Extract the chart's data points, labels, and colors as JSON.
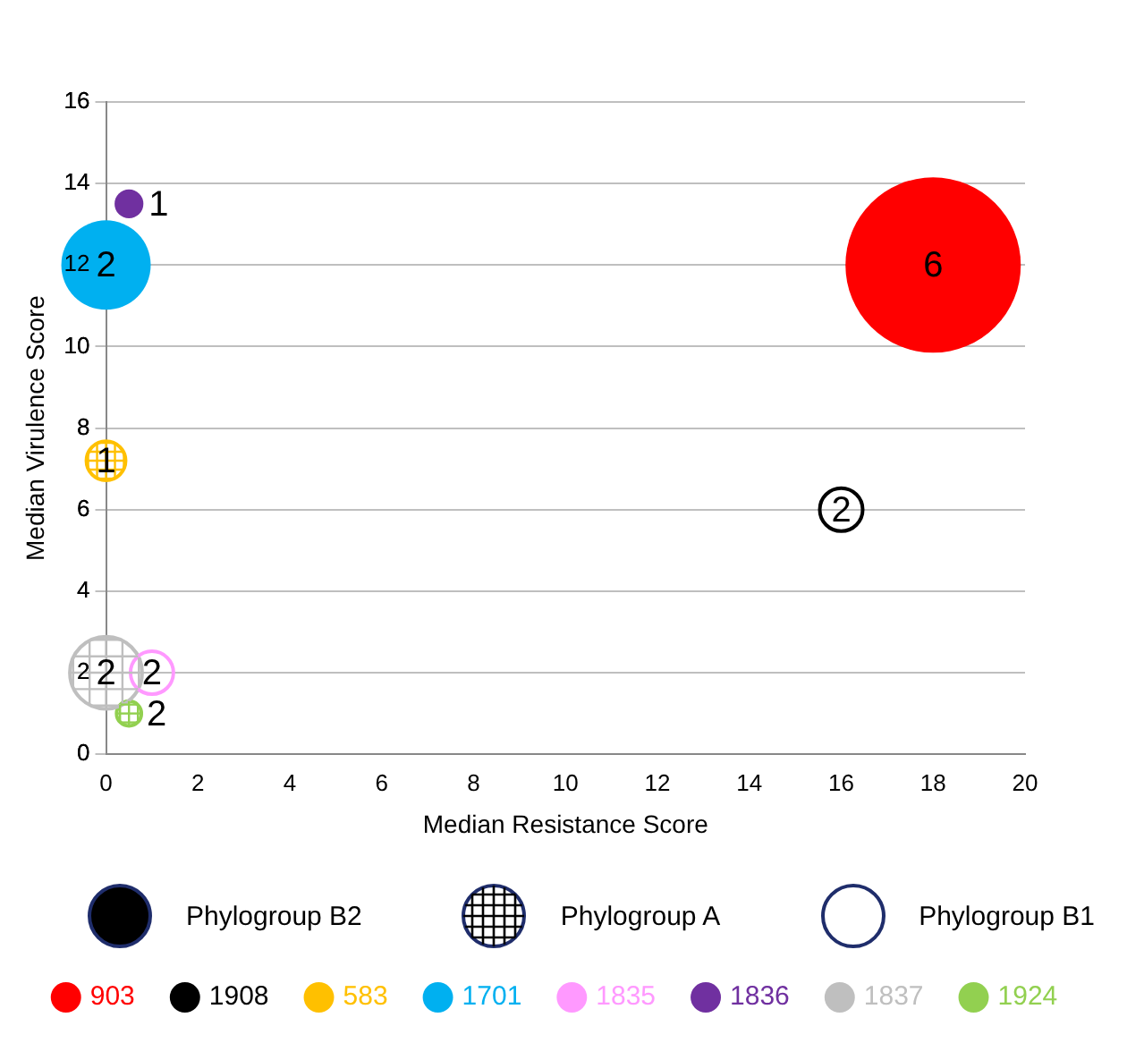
{
  "chart_data": {
    "type": "bubble",
    "xlabel": "Median Resistance Score",
    "ylabel": "Median Virulence Score",
    "xlim": [
      0,
      20
    ],
    "xticks": [
      0,
      2,
      4,
      6,
      8,
      10,
      12,
      14,
      16,
      18,
      20
    ],
    "ylim": [
      0,
      16
    ],
    "yticks": [
      0,
      2,
      4,
      6,
      8,
      10,
      12,
      14,
      16
    ],
    "grid": "y",
    "legend": "bottom",
    "annotations": [
      "Phylogroup B2",
      "Phylogroup A",
      "Phylogroup B1",
      {
        "text": "6",
        "x": 18,
        "y": 12
      },
      {
        "text": "2",
        "x": 16,
        "y": 6
      },
      {
        "text": "1",
        "x": 0,
        "y": 7.2
      },
      {
        "text": "2",
        "x": 0,
        "y": 12
      },
      {
        "text": "2",
        "x": 1,
        "y": 2
      },
      {
        "text": "1",
        "x": 0.5,
        "y": 13.5
      },
      {
        "text": "2",
        "x": 0,
        "y": 2
      },
      {
        "text": "2",
        "x": 0.5,
        "y": 1
      }
    ],
    "series": [
      {
        "name": "903",
        "color": "#ff0000",
        "x": [
          18
        ],
        "values": [
          12
        ],
        "sizes": [
          1
        ]
      },
      {
        "name": "1908",
        "color": "#000000",
        "x": [
          16
        ],
        "values": [
          6
        ],
        "sizes": [
          0.06
        ]
      },
      {
        "name": "583",
        "color": "#ffc000",
        "x": [
          0
        ],
        "values": [
          7.2
        ],
        "sizes": [
          0.05
        ]
      },
      {
        "name": "1701",
        "color": "#00b0f0",
        "x": [
          0
        ],
        "values": [
          12
        ],
        "sizes": [
          0.26
        ]
      },
      {
        "name": "1835",
        "color": "#ff99ff",
        "x": [
          1
        ],
        "values": [
          2
        ],
        "sizes": [
          0.06
        ]
      },
      {
        "name": "1836",
        "color": "#7030a0",
        "x": [
          0.5
        ],
        "values": [
          13.5
        ],
        "sizes": [
          0.027
        ]
      },
      {
        "name": "1837",
        "color": "#bfbfbf",
        "x": [
          0
        ],
        "values": [
          2
        ],
        "sizes": [
          0.17
        ]
      },
      {
        "name": "1924",
        "color": "#92d050",
        "x": [
          0.5
        ],
        "values": [
          1
        ],
        "sizes": [
          0.02
        ]
      }
    ]
  }
}
